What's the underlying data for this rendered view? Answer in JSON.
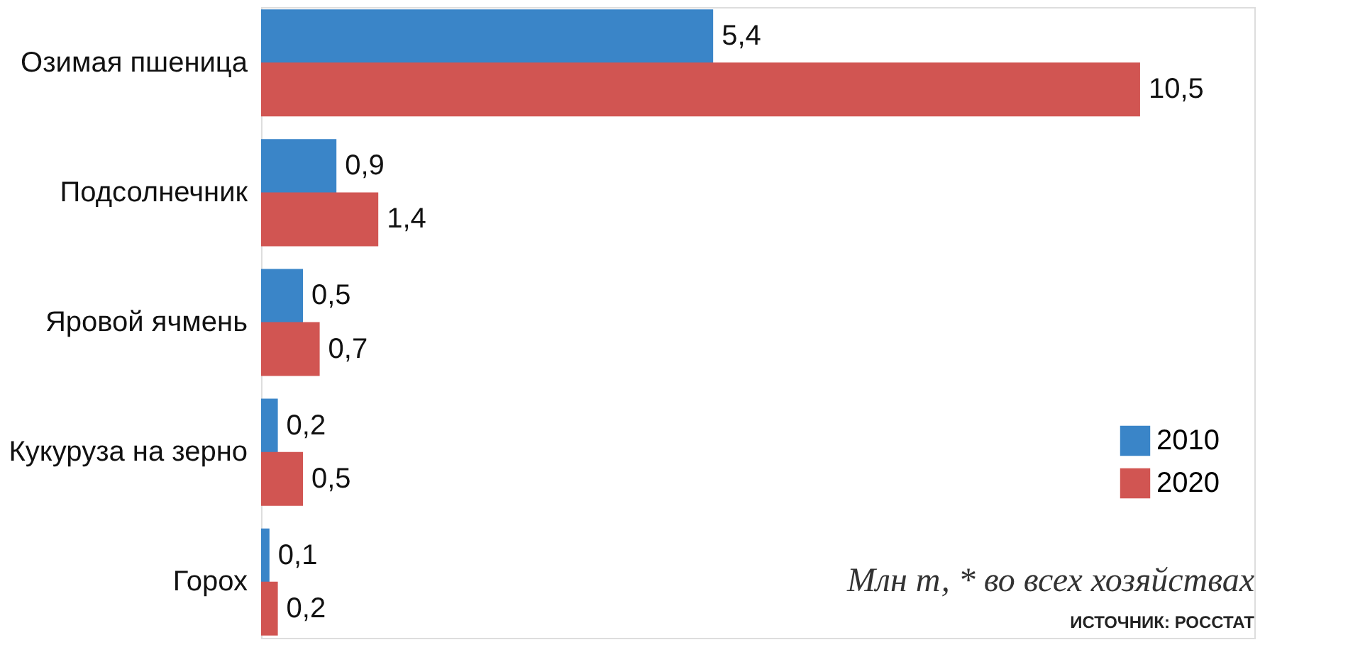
{
  "chart_data": {
    "type": "bar",
    "orientation": "horizontal",
    "categories": [
      "Озимая пшеница",
      "Подсолнечник",
      "Яровой ячмень",
      "Кукуруза на зерно",
      "Горох"
    ],
    "series": [
      {
        "name": "2010",
        "color": "#3a85c8",
        "values": [
          5.4,
          0.9,
          0.5,
          0.2,
          0.1
        ],
        "value_labels": [
          "5,4",
          "0,9",
          "0,5",
          "0,2",
          "0,1"
        ]
      },
      {
        "name": "2020",
        "color": "#d15552",
        "values": [
          10.5,
          1.4,
          0.7,
          0.5,
          0.2
        ],
        "value_labels": [
          "10,5",
          "1,4",
          "0,7",
          "0,5",
          "0,2"
        ]
      }
    ],
    "legend": "bottom right",
    "grid": false,
    "annotations": [
      "Млн т, * во всех хозяйствах",
      "ИСТОЧНИК: РОССТАТ"
    ]
  }
}
